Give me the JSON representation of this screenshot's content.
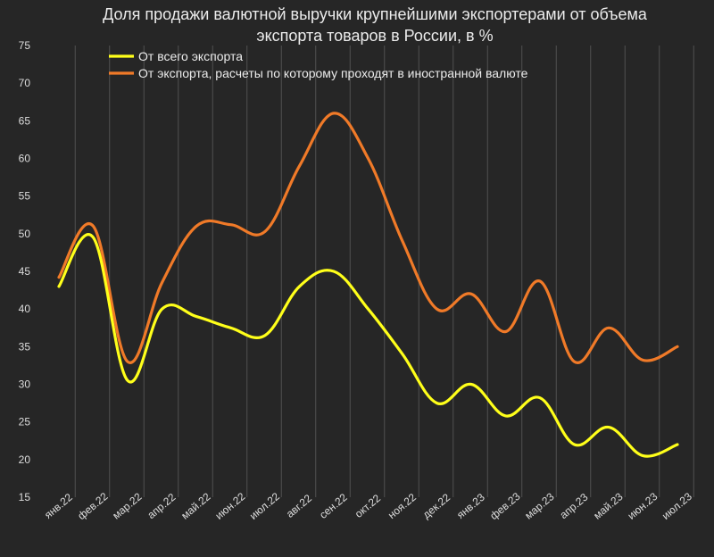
{
  "chart_data": {
    "type": "line",
    "title": "Доля продажи валютной выручки крупнейшими экспортерами от объема\nэкспорта товаров в России, в %",
    "xlabel": "",
    "ylabel": "",
    "ylim": [
      15,
      75
    ],
    "yticks": [
      15,
      20,
      25,
      30,
      35,
      40,
      45,
      50,
      55,
      60,
      65,
      70,
      75
    ],
    "grid": "vertical",
    "legend_position": "top",
    "categories": [
      "янв.22",
      "фев.22",
      "мар.22",
      "апр.22",
      "май.22",
      "июн.22",
      "июл.22",
      "авг.22",
      "сен.22",
      "окт.22",
      "ноя.22",
      "дек.22",
      "янв.23",
      "фев.23",
      "мар.23",
      "апр.23",
      "май.23",
      "июн.23",
      "июл.23"
    ],
    "series": [
      {
        "name": "От всего экспорта",
        "color": "#ffff1a",
        "values": [
          43.0,
          49.5,
          30.5,
          40.0,
          39.0,
          37.5,
          36.5,
          43.0,
          45.0,
          40.0,
          34.0,
          27.5,
          30.0,
          25.8,
          28.2,
          22.0,
          24.3,
          20.5,
          22.0
        ]
      },
      {
        "name": "От экспорта, расчеты по которому проходят в иностранной валюте",
        "color": "#f07a28",
        "values": [
          44.2,
          51.0,
          33.0,
          43.5,
          51.0,
          51.2,
          50.3,
          59.0,
          66.0,
          60.0,
          49.0,
          40.0,
          42.0,
          37.0,
          43.7,
          33.0,
          37.5,
          33.2,
          35.0
        ]
      }
    ]
  }
}
